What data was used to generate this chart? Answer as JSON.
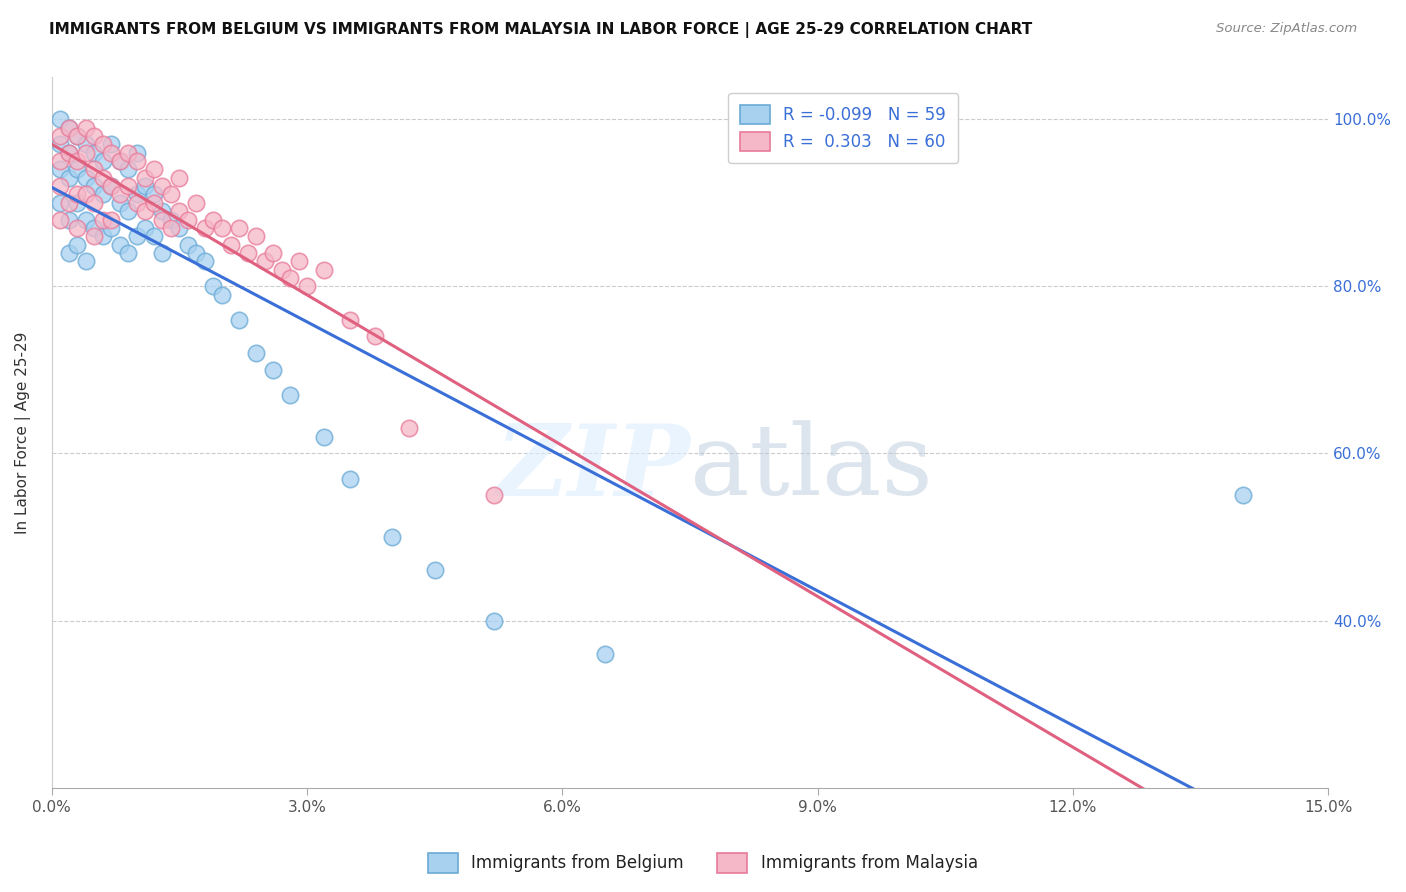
{
  "title": "IMMIGRANTS FROM BELGIUM VS IMMIGRANTS FROM MALAYSIA IN LABOR FORCE | AGE 25-29 CORRELATION CHART",
  "source": "Source: ZipAtlas.com",
  "ylabel": "In Labor Force | Age 25-29",
  "xlim": [
    0.0,
    0.15
  ],
  "ylim": [
    0.2,
    1.05
  ],
  "xtick_labels": [
    "0.0%",
    "3.0%",
    "6.0%",
    "9.0%",
    "12.0%",
    "15.0%"
  ],
  "xtick_vals": [
    0.0,
    0.03,
    0.06,
    0.09,
    0.12,
    0.15
  ],
  "ytick_labels": [
    "40.0%",
    "60.0%",
    "80.0%",
    "100.0%"
  ],
  "ytick_vals": [
    0.4,
    0.6,
    0.8,
    1.0
  ],
  "belgium_color": "#a8d1f0",
  "malaysia_color": "#f5b8c8",
  "belgium_edge": "#6aaad6",
  "malaysia_edge": "#e87a9a",
  "line_belgium_color": "#3a6fd8",
  "line_malaysia_color": "#e06080",
  "legend_R_belgium": "R = -0.099",
  "legend_N_belgium": "N = 59",
  "legend_R_malaysia": "R =  0.303",
  "legend_N_malaysia": "N = 60",
  "watermark": "ZIPatlas",
  "belgium_x": [
    0.001,
    0.001,
    0.001,
    0.001,
    0.002,
    0.002,
    0.002,
    0.002,
    0.002,
    0.003,
    0.003,
    0.003,
    0.003,
    0.004,
    0.004,
    0.004,
    0.004,
    0.005,
    0.005,
    0.005,
    0.006,
    0.006,
    0.006,
    0.007,
    0.007,
    0.007,
    0.008,
    0.008,
    0.008,
    0.009,
    0.009,
    0.009,
    0.01,
    0.01,
    0.01,
    0.011,
    0.011,
    0.012,
    0.012,
    0.013,
    0.013,
    0.014,
    0.015,
    0.016,
    0.017,
    0.018,
    0.019,
    0.02,
    0.022,
    0.024,
    0.026,
    0.028,
    0.032,
    0.035,
    0.04,
    0.045,
    0.052,
    0.065,
    0.14
  ],
  "belgium_y": [
    1.0,
    0.97,
    0.94,
    0.9,
    0.99,
    0.96,
    0.93,
    0.88,
    0.84,
    0.98,
    0.94,
    0.9,
    0.85,
    0.97,
    0.93,
    0.88,
    0.83,
    0.96,
    0.92,
    0.87,
    0.95,
    0.91,
    0.86,
    0.97,
    0.92,
    0.87,
    0.95,
    0.9,
    0.85,
    0.94,
    0.89,
    0.84,
    0.96,
    0.91,
    0.86,
    0.92,
    0.87,
    0.91,
    0.86,
    0.89,
    0.84,
    0.88,
    0.87,
    0.85,
    0.84,
    0.83,
    0.8,
    0.79,
    0.76,
    0.72,
    0.7,
    0.67,
    0.62,
    0.57,
    0.5,
    0.46,
    0.4,
    0.36,
    0.55
  ],
  "malaysia_x": [
    0.001,
    0.001,
    0.001,
    0.001,
    0.002,
    0.002,
    0.002,
    0.003,
    0.003,
    0.003,
    0.003,
    0.004,
    0.004,
    0.004,
    0.005,
    0.005,
    0.005,
    0.005,
    0.006,
    0.006,
    0.006,
    0.007,
    0.007,
    0.007,
    0.008,
    0.008,
    0.009,
    0.009,
    0.01,
    0.01,
    0.011,
    0.011,
    0.012,
    0.012,
    0.013,
    0.013,
    0.014,
    0.014,
    0.015,
    0.015,
    0.016,
    0.017,
    0.018,
    0.019,
    0.02,
    0.021,
    0.022,
    0.023,
    0.024,
    0.025,
    0.026,
    0.027,
    0.028,
    0.029,
    0.03,
    0.032,
    0.035,
    0.038,
    0.042,
    0.052
  ],
  "malaysia_y": [
    0.98,
    0.95,
    0.92,
    0.88,
    0.99,
    0.96,
    0.9,
    0.98,
    0.95,
    0.91,
    0.87,
    0.99,
    0.96,
    0.91,
    0.98,
    0.94,
    0.9,
    0.86,
    0.97,
    0.93,
    0.88,
    0.96,
    0.92,
    0.88,
    0.95,
    0.91,
    0.96,
    0.92,
    0.95,
    0.9,
    0.93,
    0.89,
    0.94,
    0.9,
    0.92,
    0.88,
    0.91,
    0.87,
    0.93,
    0.89,
    0.88,
    0.9,
    0.87,
    0.88,
    0.87,
    0.85,
    0.87,
    0.84,
    0.86,
    0.83,
    0.84,
    0.82,
    0.81,
    0.83,
    0.8,
    0.82,
    0.76,
    0.74,
    0.63,
    0.55
  ]
}
